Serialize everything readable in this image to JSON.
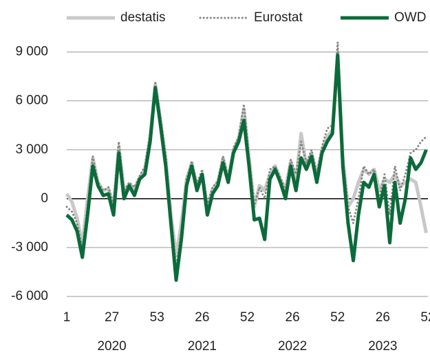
{
  "chart_data": {
    "type": "line",
    "x": [
      1,
      4,
      7,
      10,
      13,
      16,
      19,
      22,
      25,
      28,
      31,
      34,
      37,
      40,
      43,
      46,
      49,
      52,
      55,
      58,
      61,
      64,
      67,
      70,
      73,
      76,
      79,
      82,
      85,
      88,
      91,
      94,
      97,
      100,
      103,
      106,
      109,
      112,
      115,
      118,
      121,
      124,
      127,
      130,
      133,
      136,
      139,
      142,
      145,
      148,
      151,
      154,
      157,
      160,
      163,
      166,
      169,
      172,
      175,
      178,
      181,
      184,
      187,
      190,
      193,
      196,
      199,
      202,
      205,
      208
    ],
    "series": [
      {
        "name": "destatis",
        "color": "#c8c8c8",
        "style": "solid",
        "values": [
          300,
          -200,
          -1200,
          -2800,
          0,
          2500,
          1000,
          500,
          600,
          -500,
          3200,
          500,
          900,
          600,
          1300,
          1800,
          3800,
          7000,
          4800,
          2500,
          -1000,
          -3500,
          -1500,
          1200,
          2200,
          800,
          1500,
          -500,
          600,
          1000,
          2500,
          1200,
          3000,
          3700,
          5500,
          2500,
          -500,
          800,
          500,
          1500,
          2000,
          1200,
          600,
          2300,
          1200,
          4000,
          2000,
          2800,
          1500,
          3000,
          3800,
          4200,
          9000,
          2500,
          -500,
          0,
          1000,
          1800,
          1500,
          1800,
          500,
          1200,
          1000,
          1500,
          800,
          1000,
          1200,
          1000,
          -500,
          -2100
        ]
      },
      {
        "name": "Eurostat",
        "color": "#858585",
        "style": "dotted",
        "values": [
          -500,
          -800,
          -1500,
          -3000,
          -500,
          2600,
          1000,
          500,
          700,
          -300,
          3500,
          500,
          1000,
          700,
          1400,
          2000,
          4000,
          7200,
          5000,
          2600,
          -1000,
          -4200,
          -2000,
          1200,
          2300,
          900,
          1800,
          -300,
          700,
          1100,
          2600,
          1300,
          3100,
          3800,
          5800,
          2500,
          -400,
          700,
          0,
          1800,
          2000,
          1300,
          500,
          2400,
          1500,
          3500,
          2200,
          3000,
          1500,
          3200,
          4300,
          4500,
          9600,
          2500,
          -500,
          -1500,
          0,
          2000,
          1500,
          1800,
          0,
          1500,
          -1000,
          2000,
          500,
          1500,
          2800,
          3000,
          3500,
          3800
        ]
      },
      {
        "name": "OWD",
        "color": "#0b6b3a",
        "style": "solid",
        "values": [
          -1000,
          -1300,
          -2000,
          -3600,
          -1000,
          2000,
          800,
          200,
          300,
          -1000,
          2800,
          0,
          800,
          200,
          1200,
          1500,
          3500,
          6800,
          4500,
          2000,
          -1500,
          -5000,
          -2500,
          800,
          2000,
          500,
          1500,
          -1000,
          300,
          800,
          2200,
          1000,
          2800,
          3500,
          4800,
          2000,
          -1300,
          -1200,
          -2500,
          1200,
          1800,
          1000,
          0,
          2000,
          500,
          2500,
          1800,
          2600,
          1000,
          2800,
          3500,
          4000,
          8800,
          2000,
          -1500,
          -3800,
          -1000,
          1000,
          700,
          1500,
          -500,
          800,
          -2700,
          1000,
          -1500,
          0,
          2500,
          1800,
          2200,
          3000
        ]
      }
    ],
    "xlim": [
      1,
      209
    ],
    "xticks": [
      1,
      27,
      53,
      {
        "value": 79,
        "label": "26"
      },
      {
        "value": 105,
        "label": "52"
      },
      {
        "value": 131,
        "label": "26"
      },
      {
        "value": 157,
        "label": "52"
      },
      {
        "value": 183,
        "label": "26"
      },
      {
        "value": 209,
        "label": "52"
      }
    ],
    "years": [
      "2020",
      "2021",
      "2022",
      "2023"
    ],
    "ylim": [
      -6000,
      9700
    ],
    "yticks": [
      {
        "value": -6000,
        "label": "-6 000"
      },
      {
        "value": -3000,
        "label": "-3 000"
      },
      0,
      {
        "value": 3000,
        "label": "3 000"
      },
      {
        "value": 6000,
        "label": "6 000"
      },
      {
        "value": 9000,
        "label": "9 000"
      }
    ],
    "grid": true
  }
}
